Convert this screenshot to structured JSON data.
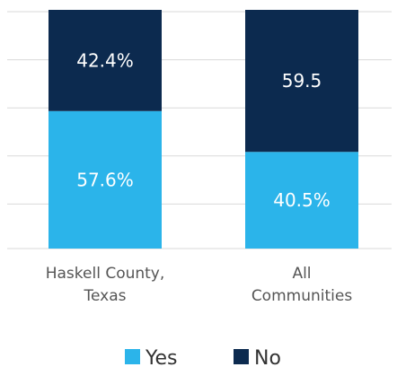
{
  "chart_data": {
    "type": "bar",
    "stacked": true,
    "normalized": true,
    "categories": [
      [
        "Haskell County,",
        "Texas"
      ],
      [
        "All",
        "Communities"
      ]
    ],
    "series": [
      {
        "name": "Yes",
        "values": [
          57.6,
          40.5
        ],
        "labels": [
          "57.6%",
          "40.5%"
        ],
        "color": "#2bb4ea"
      },
      {
        "name": "No",
        "values": [
          42.4,
          59.5
        ],
        "labels": [
          "42.4%",
          "59.5"
        ],
        "color": "#0c2a4f"
      }
    ],
    "ylim": [
      0,
      100
    ],
    "grid": true,
    "gridline_color": "#d9d9d9",
    "legend_position": "bottom"
  }
}
